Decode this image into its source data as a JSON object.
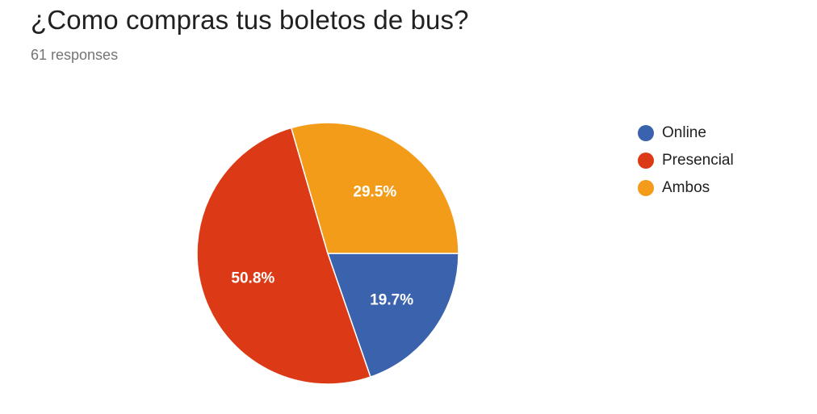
{
  "header": {
    "title": "¿Como compras tus boletos de bus?",
    "responses": "61 responses"
  },
  "chart_data": {
    "type": "pie",
    "categories": [
      "Online",
      "Presencial",
      "Ambos"
    ],
    "values": [
      19.7,
      50.8,
      29.5
    ],
    "value_labels": [
      "19.7%",
      "50.8%",
      "29.5%"
    ],
    "colors": [
      "#3b62ad",
      "#dc3a16",
      "#f39c1a"
    ],
    "title": "¿Como compras tus boletos de bus?",
    "legend": "right"
  }
}
